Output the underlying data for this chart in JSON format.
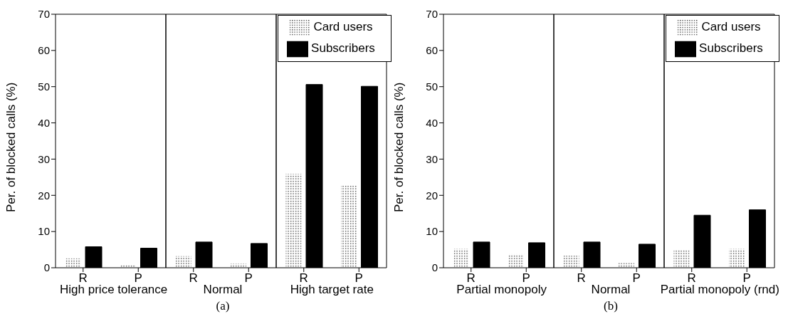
{
  "chart_data": [
    {
      "type": "bar",
      "categories": [
        "R",
        "P",
        "R",
        "P",
        "R",
        "P"
      ],
      "ylabel": "Per. of blocked calls (%)",
      "ylim": [
        0,
        70
      ],
      "yticks": [
        0,
        10,
        20,
        30,
        40,
        50,
        60,
        70
      ],
      "legend": "top right",
      "grid": false,
      "series": [
        {
          "name": "Card users",
          "color": "#ffffff",
          "values": [
            2.7,
            0.9,
            3.3,
            1.2,
            26,
            22.8
          ]
        },
        {
          "name": "Subscribers",
          "color": "#000000",
          "values": [
            5.8,
            5.4,
            7.1,
            6.7,
            50.6,
            50.1
          ]
        }
      ],
      "annotations": [
        "High price tolerance",
        "Normal",
        "High target rate",
        "(a)"
      ]
    },
    {
      "type": "bar",
      "categories": [
        "R",
        "P",
        "R",
        "P",
        "R",
        "P"
      ],
      "ylabel": "Per. of blocked calls (%)",
      "ylim": [
        0,
        70
      ],
      "yticks": [
        0,
        10,
        20,
        30,
        40,
        50,
        60,
        70
      ],
      "legend": "top right",
      "grid": false,
      "series": [
        {
          "name": "Card users",
          "color": "#ffffff",
          "values": [
            5.3,
            3.8,
            3.4,
            1.4,
            5.1,
            5.3
          ]
        },
        {
          "name": "Subscribers",
          "color": "#000000",
          "values": [
            7.1,
            6.9,
            7.1,
            6.5,
            14.5,
            16
          ]
        }
      ],
      "annotations": [
        "Partial monopoly",
        "Normal",
        "Partial monopoly (rnd)",
        "(b)"
      ]
    }
  ]
}
